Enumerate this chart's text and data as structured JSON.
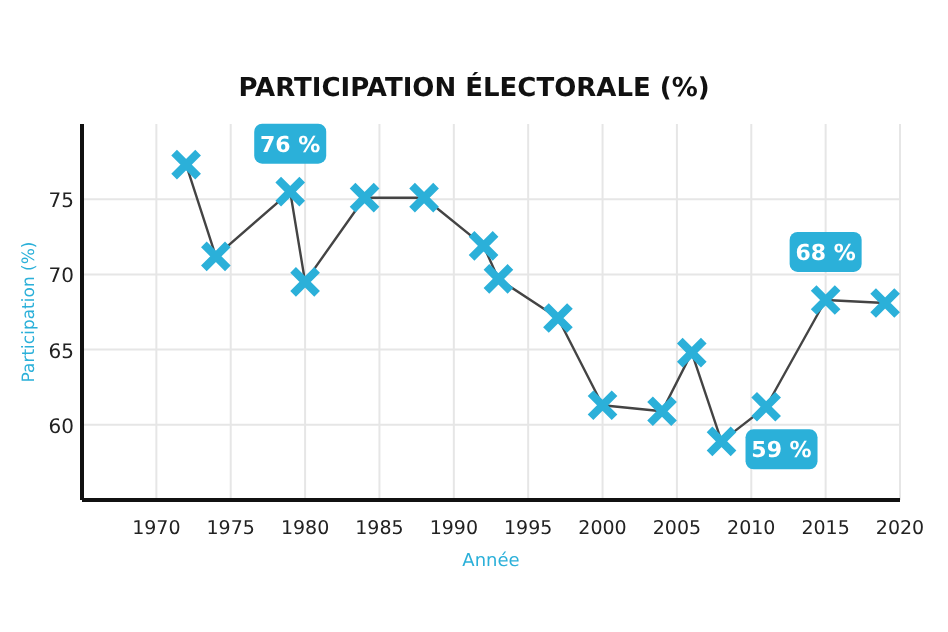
{
  "chart_data": {
    "type": "line",
    "title": "PARTICIPATION ÉLECTORALE (%)",
    "xlabel": "Année",
    "ylabel": "Participation (%)",
    "x": [
      1972,
      1974,
      1979,
      1980,
      1984,
      1988,
      1992,
      1993,
      1997,
      2000,
      2004,
      2006,
      2008,
      2011,
      2015,
      2019
    ],
    "series": [
      {
        "color": "#2bb0d9",
        "values": [
          77.3,
          71.2,
          75.5,
          69.5,
          75.1,
          75.1,
          71.9,
          69.7,
          67.1,
          61.3,
          60.9,
          64.8,
          58.9,
          61.2,
          68.3,
          68.1
        ]
      }
    ],
    "xlim": [
      1965,
      2020
    ],
    "xticks": [
      1970,
      1975,
      1980,
      1985,
      1990,
      1995,
      2000,
      2005,
      2010,
      2015,
      2020
    ],
    "ylim": [
      55,
      80
    ],
    "yticks": [
      60,
      65,
      70,
      75
    ],
    "grid": true,
    "marker": "cross",
    "line_style": "solid",
    "annotations": [
      {
        "text": "76 %",
        "x": 1979,
        "y": 75.5
      },
      {
        "text": "59 %",
        "x": 2008,
        "y": 58.9
      },
      {
        "text": "68 %",
        "x": 2015,
        "y": 68.3
      }
    ]
  }
}
